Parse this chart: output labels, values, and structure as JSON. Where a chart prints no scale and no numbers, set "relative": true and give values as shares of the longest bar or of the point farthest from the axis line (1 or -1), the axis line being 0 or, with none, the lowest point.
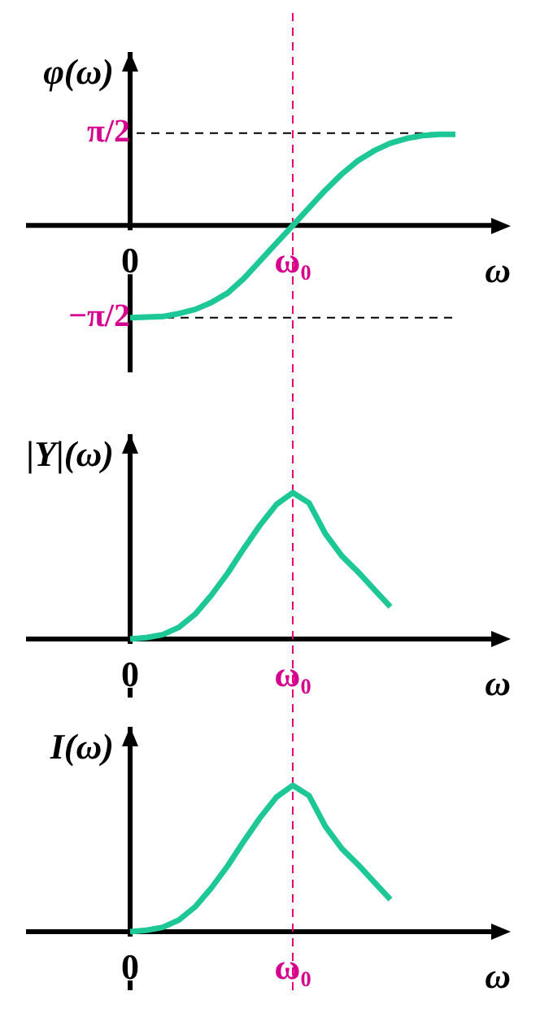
{
  "chart_data": [
    {
      "type": "line",
      "xlabel": "ω",
      "ylabel": "φ(ω)",
      "categories": [
        "0",
        null,
        null,
        null,
        null,
        null,
        null,
        null,
        null,
        null,
        "ω₀",
        null,
        null,
        null,
        null,
        null,
        null,
        null,
        null,
        null,
        null
      ],
      "series": [
        {
          "color": "#1ec896",
          "values": [
            -1.57,
            -1.56,
            -1.55,
            -1.5,
            -1.43,
            -1.31,
            -1.15,
            -0.9,
            -0.6,
            -0.3,
            0,
            0.3,
            0.6,
            0.87,
            1.1,
            1.27,
            1.4,
            1.48,
            1.53,
            1.55,
            1.55
          ]
        }
      ],
      "ylim": [
        -2.5,
        2.95
      ],
      "yticks": [
        {
          "value": -1.571,
          "label": "−π/2"
        },
        {
          "value": 1.571,
          "label": "π/2"
        }
      ],
      "ref_lines": [
        {
          "axis": "y",
          "value": 1.571,
          "label": null,
          "color": "#000000",
          "line_style": "dashed"
        },
        {
          "axis": "y",
          "value": -1.571,
          "label": null,
          "color": "#000000",
          "line_style": "dashed"
        },
        {
          "axis": "x",
          "value": "ω₀",
          "label": null,
          "color": "#e6007e",
          "line_style": "dashed"
        }
      ]
    },
    {
      "type": "line",
      "relative": true,
      "xlabel": "ω",
      "ylabel": "|Y|(ω)",
      "categories": [
        "0",
        null,
        null,
        null,
        null,
        null,
        null,
        null,
        null,
        null,
        "ω₀",
        null,
        null,
        null,
        null,
        null,
        null
      ],
      "series": [
        {
          "color": "#1ec896",
          "values": [
            0,
            0.01,
            0.03,
            0.08,
            0.17,
            0.3,
            0.45,
            0.62,
            0.78,
            0.92,
            1,
            0.93,
            0.72,
            0.57,
            0.46,
            0.34,
            0.22
          ]
        }
      ],
      "ref_lines": [
        {
          "axis": "x",
          "value": "ω₀",
          "label": null,
          "color": "#e6007e",
          "line_style": "dashed"
        }
      ]
    },
    {
      "type": "line",
      "relative": true,
      "xlabel": "ω",
      "ylabel": "I(ω)",
      "categories": [
        "0",
        null,
        null,
        null,
        null,
        null,
        null,
        null,
        null,
        null,
        "ω₀",
        null,
        null,
        null,
        null,
        null,
        null
      ],
      "series": [
        {
          "color": "#1ec896",
          "values": [
            0,
            0.01,
            0.03,
            0.08,
            0.17,
            0.3,
            0.45,
            0.62,
            0.78,
            0.92,
            1,
            0.93,
            0.72,
            0.57,
            0.46,
            0.34,
            0.22
          ]
        }
      ],
      "ref_lines": [
        {
          "axis": "x",
          "value": "ω₀",
          "label": null,
          "color": "#e6007e",
          "line_style": "dashed"
        }
      ]
    }
  ]
}
